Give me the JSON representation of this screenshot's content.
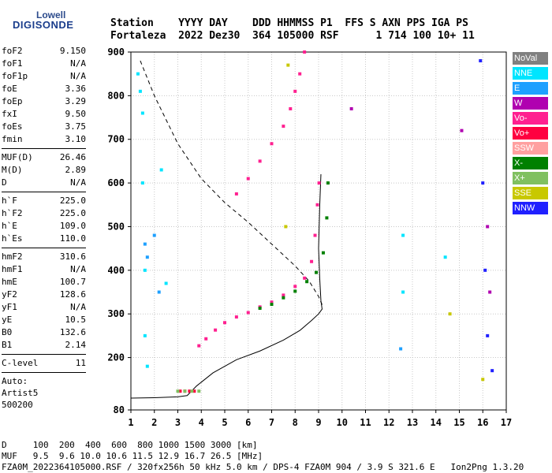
{
  "logo": {
    "line1": "Lowell",
    "line2": "DIGISONDE"
  },
  "header": {
    "labels": "Station    YYYY DAY    DDD HHMMSS P1  FFS S AXN PPS IGA PS",
    "values": "Fortaleza  2022 Dez30  364 105000 RSF      1 714 100 10+ 11"
  },
  "params": {
    "group1": [
      {
        "k": "foF2",
        "v": "9.150"
      },
      {
        "k": "foF1",
        "v": "N/A"
      },
      {
        "k": "foF1p",
        "v": "N/A"
      },
      {
        "k": "foE",
        "v": "3.36"
      },
      {
        "k": "foEp",
        "v": "3.29"
      },
      {
        "k": "fxI",
        "v": "9.50"
      },
      {
        "k": "foEs",
        "v": "3.75"
      },
      {
        "k": "fmin",
        "v": "3.10"
      }
    ],
    "group2": [
      {
        "k": "MUF(D)",
        "v": "26.46"
      },
      {
        "k": "M(D)",
        "v": "2.89"
      },
      {
        "k": "D",
        "v": "N/A"
      }
    ],
    "group3": [
      {
        "k": "h`F",
        "v": "225.0"
      },
      {
        "k": "h`F2",
        "v": "225.0"
      },
      {
        "k": "h`E",
        "v": "109.0"
      },
      {
        "k": "h`Es",
        "v": "110.0"
      }
    ],
    "group4": [
      {
        "k": "hmF2",
        "v": "310.6"
      },
      {
        "k": "hmF1",
        "v": "N/A"
      },
      {
        "k": "hmE",
        "v": "100.7"
      },
      {
        "k": "yF2",
        "v": "128.6"
      },
      {
        "k": "yF1",
        "v": "N/A"
      },
      {
        "k": "yE",
        "v": "10.5"
      },
      {
        "k": "B0",
        "v": "132.6"
      },
      {
        "k": "B1",
        "v": "2.14"
      }
    ],
    "group5": [
      {
        "k": "C-level",
        "v": "11"
      }
    ],
    "auto": [
      "Auto:",
      "Artist5",
      "500200"
    ]
  },
  "legend": [
    {
      "label": "NoVal",
      "color": "#808080"
    },
    {
      "label": "NNE",
      "color": "#00e5ff"
    },
    {
      "label": "E",
      "color": "#1ea0ff"
    },
    {
      "label": "W",
      "color": "#b000b0"
    },
    {
      "label": "Vo-",
      "color": "#ff2090"
    },
    {
      "label": "Vo+",
      "color": "#ff0040"
    },
    {
      "label": "SSW",
      "color": "#ffa0a0"
    },
    {
      "label": "X-",
      "color": "#008000"
    },
    {
      "label": "X+",
      "color": "#80c060"
    },
    {
      "label": "SSE",
      "color": "#c8c800"
    },
    {
      "label": "NNW",
      "color": "#2020ff"
    }
  ],
  "footer": {
    "line1": "D     100  200  400  600  800 1000 1500 3000 [km]",
    "line2": "MUF   9.5  9.6 10.0 10.6 11.5 12.9 16.7 26.5 [MHz]",
    "line3": "FZA0M_2022364105000.RSF / 320fx256h 50 kHz 5.0 km / DPS-4 FZA0M 904 / 3.9 S 321.6 E   Ion2Png 1.3.20"
  },
  "chart_data": {
    "type": "scatter",
    "x_ticks": [
      1,
      2,
      3,
      4,
      5,
      6,
      7,
      8,
      9,
      10,
      11,
      12,
      13,
      14,
      15,
      16,
      17
    ],
    "y_ticks": [
      80,
      200,
      300,
      400,
      500,
      600,
      700,
      800,
      900
    ],
    "xlim": [
      1,
      17
    ],
    "ylim": [
      80,
      900
    ],
    "grid": true,
    "series": [
      {
        "name": "Vo-",
        "color": "#ff2090",
        "points": [
          [
            3.9,
            227
          ],
          [
            4.2,
            243
          ],
          [
            4.6,
            263
          ],
          [
            5.0,
            280
          ],
          [
            5.5,
            293
          ],
          [
            6.0,
            303
          ],
          [
            6.5,
            316
          ],
          [
            7.0,
            327
          ],
          [
            7.5,
            343
          ],
          [
            8.0,
            363
          ],
          [
            8.4,
            382
          ],
          [
            8.7,
            420
          ],
          [
            8.85,
            480
          ],
          [
            8.95,
            550
          ],
          [
            9.02,
            600
          ],
          [
            5.5,
            575
          ],
          [
            6.0,
            610
          ],
          [
            6.5,
            650
          ],
          [
            7.0,
            690
          ],
          [
            7.5,
            730
          ],
          [
            7.8,
            770
          ],
          [
            8.0,
            810
          ],
          [
            8.2,
            850
          ],
          [
            8.4,
            900
          ]
        ]
      },
      {
        "name": "Vo+",
        "color": "#ff0040",
        "points": [
          [
            3.1,
            123
          ],
          [
            3.3,
            123
          ],
          [
            3.5,
            123
          ],
          [
            3.7,
            123
          ]
        ]
      },
      {
        "name": "X-",
        "color": "#008000",
        "points": [
          [
            6.5,
            313
          ],
          [
            7.0,
            322
          ],
          [
            7.5,
            337
          ],
          [
            8.0,
            352
          ],
          [
            8.5,
            374
          ],
          [
            8.9,
            395
          ],
          [
            9.2,
            440
          ],
          [
            9.35,
            520
          ],
          [
            9.4,
            600
          ]
        ]
      },
      {
        "name": "X+",
        "color": "#80c060",
        "points": [
          [
            3.0,
            123
          ],
          [
            3.3,
            123
          ],
          [
            3.6,
            123
          ],
          [
            3.9,
            123
          ]
        ]
      },
      {
        "name": "NNE",
        "color": "#00e5ff",
        "points": [
          [
            1.3,
            850
          ],
          [
            1.4,
            810
          ],
          [
            1.5,
            760
          ],
          [
            1.5,
            600
          ],
          [
            1.6,
            400
          ],
          [
            1.6,
            250
          ],
          [
            1.7,
            180
          ],
          [
            2.3,
            630
          ],
          [
            2.5,
            370
          ],
          [
            12.6,
            480
          ],
          [
            12.6,
            350
          ],
          [
            14.4,
            430
          ]
        ]
      },
      {
        "name": "E",
        "color": "#1ea0ff",
        "points": [
          [
            1.6,
            460
          ],
          [
            1.7,
            430
          ],
          [
            2.0,
            480
          ],
          [
            2.2,
            350
          ],
          [
            12.5,
            220
          ]
        ]
      },
      {
        "name": "NNW",
        "color": "#2020ff",
        "points": [
          [
            15.9,
            880
          ],
          [
            16.0,
            600
          ],
          [
            16.1,
            400
          ],
          [
            16.2,
            250
          ],
          [
            16.4,
            170
          ]
        ]
      },
      {
        "name": "W",
        "color": "#b000b0",
        "points": [
          [
            10.4,
            770
          ],
          [
            15.1,
            720
          ],
          [
            16.2,
            500
          ],
          [
            16.3,
            350
          ]
        ]
      },
      {
        "name": "SSE",
        "color": "#c8c800",
        "points": [
          [
            7.6,
            500
          ],
          [
            7.7,
            870
          ],
          [
            14.6,
            300
          ],
          [
            16.0,
            150
          ]
        ]
      }
    ],
    "profile_points": [
      [
        1.0,
        107
      ],
      [
        2.0,
        108
      ],
      [
        3.0,
        110
      ],
      [
        3.4,
        113
      ],
      [
        3.8,
        135
      ],
      [
        4.5,
        165
      ],
      [
        5.5,
        195
      ],
      [
        6.5,
        215
      ],
      [
        7.5,
        240
      ],
      [
        8.2,
        262
      ],
      [
        8.7,
        285
      ],
      [
        9.0,
        300
      ],
      [
        9.15,
        311
      ],
      [
        9.1,
        330
      ],
      [
        9.05,
        380
      ],
      [
        9.0,
        450
      ],
      [
        9.05,
        550
      ],
      [
        9.1,
        620
      ]
    ],
    "muf_curve": [
      [
        1.4,
        880
      ],
      [
        2.0,
        800
      ],
      [
        3.0,
        690
      ],
      [
        4.0,
        610
      ],
      [
        5.0,
        555
      ],
      [
        6.0,
        510
      ],
      [
        7.0,
        460
      ],
      [
        8.0,
        410
      ],
      [
        8.6,
        375
      ],
      [
        9.0,
        340
      ],
      [
        9.2,
        315
      ]
    ]
  }
}
